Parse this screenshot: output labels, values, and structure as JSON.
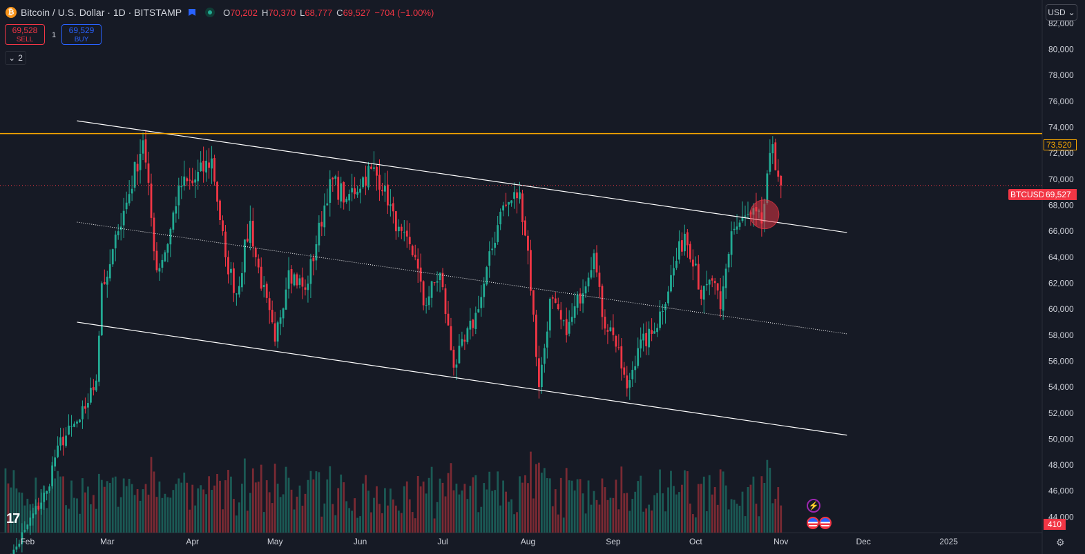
{
  "header": {
    "logo_glyph": "₿",
    "title": "Bitcoin / U.S. Dollar · 1D · BITSTAMP",
    "ohlc": {
      "o_label": "O",
      "o": "70,202",
      "h_label": "H",
      "h": "70,370",
      "l_label": "L",
      "l": "68,777",
      "c_label": "C",
      "c": "69,527",
      "change": "−704 (−1.00%)"
    }
  },
  "trade": {
    "sell_price": "69,528",
    "sell_label": "SELL",
    "buy_price": "69,529",
    "buy_label": "BUY",
    "spread": "1"
  },
  "indicators_toggle": {
    "chevron": "⌄",
    "count": "2"
  },
  "currency_select": {
    "value": "USD",
    "chevron": "⌄"
  },
  "tags": {
    "resistance": "73,520",
    "symbol": "BTCUSD",
    "last_price": "69,527",
    "volume": "410"
  },
  "logo_text": "17",
  "icons": {
    "events": "lightning-icon",
    "economic_flags": "us-flag-icon",
    "settings": "gear-icon"
  },
  "colors": {
    "up": "#22ab94",
    "down": "#f23645",
    "resistance": "#f7a600",
    "background": "#161a25",
    "channel": "#ffffff",
    "buy": "#2962ff"
  },
  "chart_data": {
    "type": "candlestick",
    "symbol": "BTCUSD",
    "interval": "1D",
    "y_ticks": [
      44000,
      46000,
      48000,
      50000,
      52000,
      54000,
      56000,
      58000,
      60000,
      62000,
      64000,
      66000,
      68000,
      70000,
      72000,
      74000,
      76000,
      78000,
      80000,
      82000
    ],
    "ylim": [
      42800,
      83800
    ],
    "x_labels": [
      {
        "label": "Feb",
        "date": "2024-02-01"
      },
      {
        "label": "Mar",
        "date": "2024-03-01"
      },
      {
        "label": "Apr",
        "date": "2024-04-01"
      },
      {
        "label": "May",
        "date": "2024-05-01"
      },
      {
        "label": "Jun",
        "date": "2024-06-01"
      },
      {
        "label": "Jul",
        "date": "2024-07-01"
      },
      {
        "label": "Aug",
        "date": "2024-08-01"
      },
      {
        "label": "Sep",
        "date": "2024-09-01"
      },
      {
        "label": "Oct",
        "date": "2024-10-01"
      },
      {
        "label": "Nov",
        "date": "2024-11-01"
      },
      {
        "label": "Dec",
        "date": "2024-12-01"
      },
      {
        "label": "2025",
        "date": "2025-01-01"
      }
    ],
    "xlim": [
      "2024-01-22",
      "2025-02-04"
    ],
    "resistance": 73520,
    "last_price": 69527,
    "channel_lines": [
      {
        "style": "solid",
        "start": [
          "2024-02-19",
          74500
        ],
        "end": [
          "2024-11-25",
          65900
        ]
      },
      {
        "style": "dotted",
        "start": [
          "2024-02-19",
          66700
        ],
        "end": [
          "2024-11-25",
          58100
        ]
      },
      {
        "style": "solid",
        "start": [
          "2024-02-19",
          59000
        ],
        "end": [
          "2024-11-25",
          50300
        ]
      }
    ],
    "highlight": {
      "date": "2024-10-26",
      "price": 67300
    },
    "anchors": [
      [
        "2024-01-23",
        39500
      ],
      [
        "2024-01-31",
        43000
      ],
      [
        "2024-02-08",
        46000
      ],
      [
        "2024-02-12",
        49500
      ],
      [
        "2024-02-20",
        51500
      ],
      [
        "2024-02-26",
        54500
      ],
      [
        "2024-02-28",
        62000
      ],
      [
        "2024-03-01",
        62500
      ],
      [
        "2024-03-05",
        66000
      ],
      [
        "2024-03-08",
        68200
      ],
      [
        "2024-03-14",
        73000
      ],
      [
        "2024-03-19",
        63000
      ],
      [
        "2024-03-23",
        65000
      ],
      [
        "2024-03-27",
        69500
      ],
      [
        "2024-04-01",
        69700
      ],
      [
        "2024-04-08",
        71600
      ],
      [
        "2024-04-13",
        64000
      ],
      [
        "2024-04-17",
        61200
      ],
      [
        "2024-04-22",
        66800
      ],
      [
        "2024-04-24",
        64000
      ],
      [
        "2024-05-01",
        57500
      ],
      [
        "2024-05-06",
        63000
      ],
      [
        "2024-05-12",
        61500
      ],
      [
        "2024-05-16",
        65000
      ],
      [
        "2024-05-21",
        70000
      ],
      [
        "2024-05-27",
        68500
      ],
      [
        "2024-06-05",
        70800
      ],
      [
        "2024-06-10",
        69500
      ],
      [
        "2024-06-14",
        66000
      ],
      [
        "2024-06-21",
        64000
      ],
      [
        "2024-06-24",
        60300
      ],
      [
        "2024-06-30",
        62800
      ],
      [
        "2024-07-05",
        55500
      ],
      [
        "2024-07-09",
        57500
      ],
      [
        "2024-07-14",
        60000
      ],
      [
        "2024-07-22",
        67500
      ],
      [
        "2024-07-29",
        69000
      ],
      [
        "2024-08-01",
        64500
      ],
      [
        "2024-08-05",
        54000
      ],
      [
        "2024-08-07",
        57000
      ],
      [
        "2024-08-09",
        60800
      ],
      [
        "2024-08-15",
        58000
      ],
      [
        "2024-08-25",
        64300
      ],
      [
        "2024-08-28",
        59400
      ],
      [
        "2024-09-01",
        58000
      ],
      [
        "2024-09-06",
        53900
      ],
      [
        "2024-09-10",
        57000
      ],
      [
        "2024-09-16",
        58300
      ],
      [
        "2024-09-27",
        65800
      ],
      [
        "2024-10-01",
        63500
      ],
      [
        "2024-10-03",
        60800
      ],
      [
        "2024-10-07",
        62200
      ],
      [
        "2024-10-10",
        60000
      ],
      [
        "2024-10-14",
        66000
      ],
      [
        "2024-10-21",
        67300
      ],
      [
        "2024-10-25",
        66600
      ],
      [
        "2024-10-29",
        72700
      ],
      [
        "2024-10-31",
        70200
      ],
      [
        "2024-11-01",
        69527
      ]
    ],
    "volume_bars": 410
  }
}
